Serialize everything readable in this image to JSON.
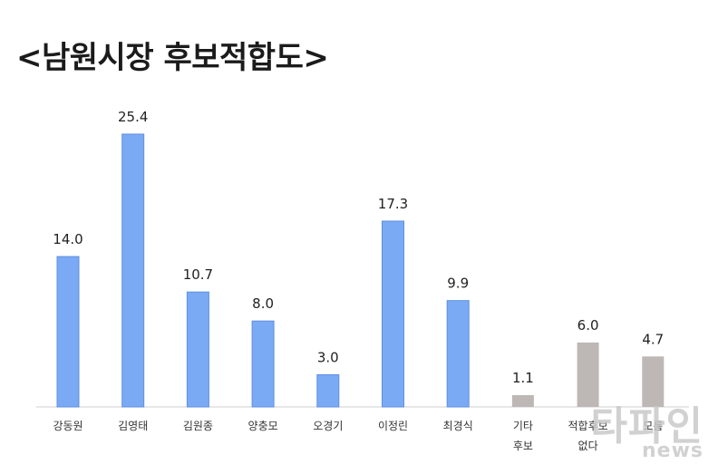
{
  "title": "<남원시장 후보적합도>",
  "chart_data": {
    "type": "bar",
    "categories": [
      "강동원",
      "김영태",
      "김원종",
      "양충모",
      "오경기",
      "이정린",
      "최경식",
      "기타\n후보",
      "적합후보\n없다",
      "모름"
    ],
    "values": [
      14.0,
      25.4,
      10.7,
      8.0,
      3.0,
      17.3,
      9.9,
      1.1,
      6.0,
      4.7
    ],
    "value_labels": [
      "14.0",
      "25.4",
      "10.7",
      "8.0",
      "3.0",
      "17.3",
      "9.9",
      "1.1",
      "6.0",
      "4.7"
    ],
    "bar_colors": [
      "#7aaaf4",
      "#7aaaf4",
      "#7aaaf4",
      "#7aaaf4",
      "#7aaaf4",
      "#7aaaf4",
      "#7aaaf4",
      "#bdb7b6",
      "#bdb7b6",
      "#bdb7b6"
    ],
    "xlabel": "",
    "ylabel": "",
    "ylim": [
      0,
      27
    ],
    "grid": false,
    "legend": "none"
  },
  "watermark": {
    "main": "타파인",
    "sub": "news"
  }
}
